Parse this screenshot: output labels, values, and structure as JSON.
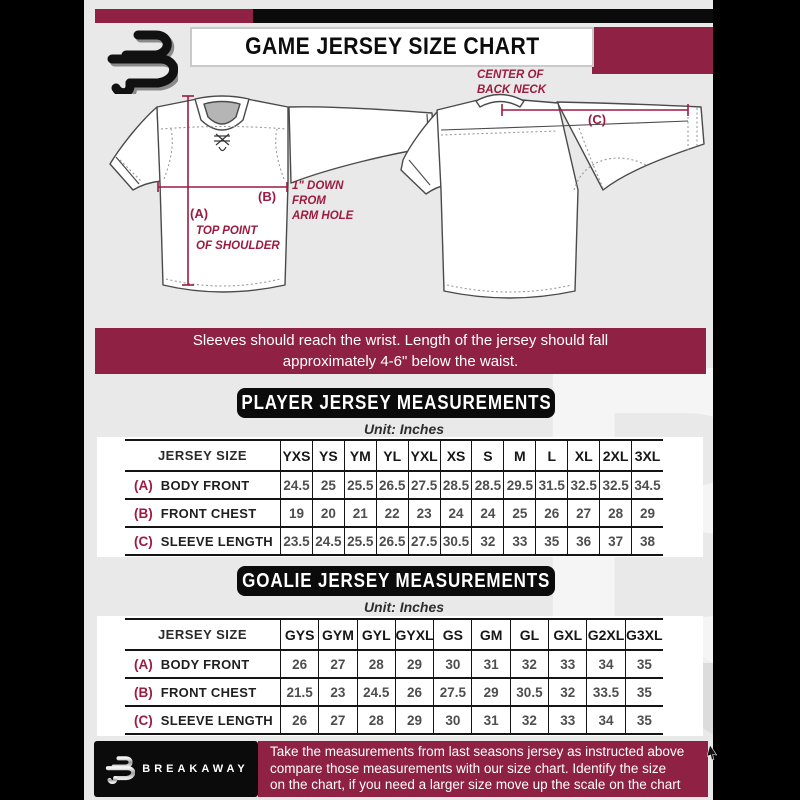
{
  "header": {
    "title": "GAME JERSEY SIZE CHART",
    "brand_letter": "B"
  },
  "diagram": {
    "front": {
      "label_a": "(A)",
      "label_b": "(B)",
      "note_a_lines": [
        "TOP POINT",
        "OF SHOULDER"
      ],
      "note_b_lines": [
        "1\" DOWN",
        "FROM",
        "ARM HOLE"
      ]
    },
    "back": {
      "label_c": "(C)",
      "note_c_lines": [
        "CENTER OF",
        "BACK NECK"
      ]
    }
  },
  "banner": {
    "lines": [
      "Sleeves should reach the wrist. Length of the jersey should fall",
      "approximately 4-6\" below the waist."
    ]
  },
  "player_section": {
    "title": "PLAYER JERSEY MEASUREMENTS",
    "unit": "Unit: Inches"
  },
  "goalie_section": {
    "title": "GOALIE JERSEY MEASUREMENTS",
    "unit": "Unit: Inches"
  },
  "player_table": {
    "corner_label": "JERSEY SIZE",
    "sizes": [
      "YXS",
      "YS",
      "YM",
      "YL",
      "YXL",
      "XS",
      "S",
      "M",
      "L",
      "XL",
      "2XL",
      "3XL"
    ],
    "rows": [
      {
        "letter": "(A)",
        "label": "BODY FRONT",
        "values": [
          "24.5",
          "25",
          "25.5",
          "26.5",
          "27.5",
          "28.5",
          "28.5",
          "29.5",
          "31.5",
          "32.5",
          "32.5",
          "34.5"
        ]
      },
      {
        "letter": "(B)",
        "label": "FRONT CHEST",
        "values": [
          "19",
          "20",
          "21",
          "22",
          "23",
          "24",
          "24",
          "25",
          "26",
          "27",
          "28",
          "29"
        ]
      },
      {
        "letter": "(C)",
        "label": "SLEEVE LENGTH",
        "values": [
          "23.5",
          "24.5",
          "25.5",
          "26.5",
          "27.5",
          "30.5",
          "32",
          "33",
          "35",
          "36",
          "37",
          "38"
        ]
      }
    ]
  },
  "goalie_table": {
    "corner_label": "JERSEY SIZE",
    "sizes": [
      "GYS",
      "GYM",
      "GYL",
      "GYXL",
      "GS",
      "GM",
      "GL",
      "GXL",
      "G2XL",
      "G3XL"
    ],
    "rows": [
      {
        "letter": "(A)",
        "label": "BODY FRONT",
        "values": [
          "26",
          "27",
          "28",
          "29",
          "30",
          "31",
          "32",
          "33",
          "34",
          "35"
        ]
      },
      {
        "letter": "(B)",
        "label": "FRONT CHEST",
        "values": [
          "21.5",
          "23",
          "24.5",
          "26",
          "27.5",
          "29",
          "30.5",
          "32",
          "33.5",
          "35"
        ]
      },
      {
        "letter": "(C)",
        "label": "SLEEVE LENGTH",
        "values": [
          "26",
          "27",
          "28",
          "29",
          "30",
          "31",
          "32",
          "33",
          "34",
          "35"
        ]
      }
    ]
  },
  "footer": {
    "brand": "BREAKAWAY",
    "lines": [
      "Take the measurements from last seasons jersey as instructed above",
      "compare those measurements  with our size chart. Identify the size",
      "on the chart, if you need a larger size move up the scale on the chart"
    ]
  },
  "colors": {
    "maroon": "#8e2144",
    "black": "#0b0b0b",
    "page_bg": "#e9e9e9",
    "measure_line": "#9c1b40"
  }
}
